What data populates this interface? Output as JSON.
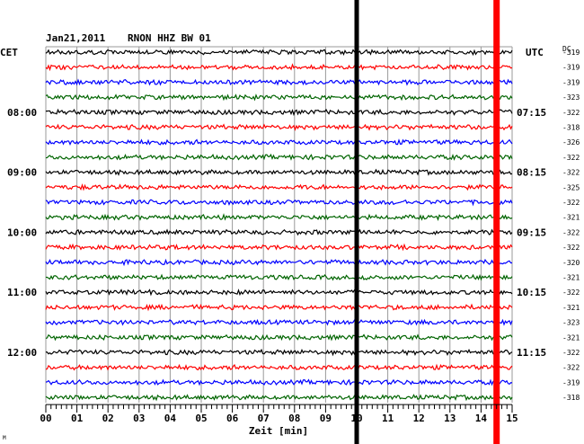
{
  "header": {
    "date": "Jan21,2011",
    "station": "RNON HHZ BW 01",
    "left_zone": "CET",
    "right_zone": "UTC",
    "dc_label": "DC"
  },
  "chart_data": {
    "type": "line",
    "title": "Jan21,2011   RNON HHZ BW 01",
    "xlabel": "Zeit [min]",
    "xlim": [
      0,
      15
    ],
    "x_ticks": [
      "00",
      "01",
      "02",
      "03",
      "04",
      "05",
      "06",
      "07",
      "08",
      "09",
      "10",
      "11",
      "12",
      "13",
      "14",
      "15"
    ],
    "traces_count": 24,
    "trace_interval_min": 15,
    "trace_colors": [
      "#000000",
      "#ff0000",
      "#0000ff",
      "#006400"
    ],
    "left_hour_labels": [
      "08:00",
      "09:00",
      "10:00",
      "11:00",
      "12:00"
    ],
    "right_hour_labels": [
      "07:15",
      "08:15",
      "09:15",
      "10:15",
      "11:15"
    ],
    "dc_offsets": [
      "-319",
      "-319",
      "-319",
      "-323",
      "-322",
      "-318",
      "-326",
      "-322",
      "-322",
      "-325",
      "-322",
      "-321",
      "-322",
      "-322",
      "-320",
      "-321",
      "-322",
      "-321",
      "-323",
      "-321",
      "-322",
      "-322",
      "-319",
      "-318"
    ],
    "markers": [
      {
        "x_min": 10.0,
        "color": "#000000"
      },
      {
        "x_min": 14.5,
        "color": "#ff0000"
      }
    ],
    "grid": true,
    "footnote": "M"
  }
}
